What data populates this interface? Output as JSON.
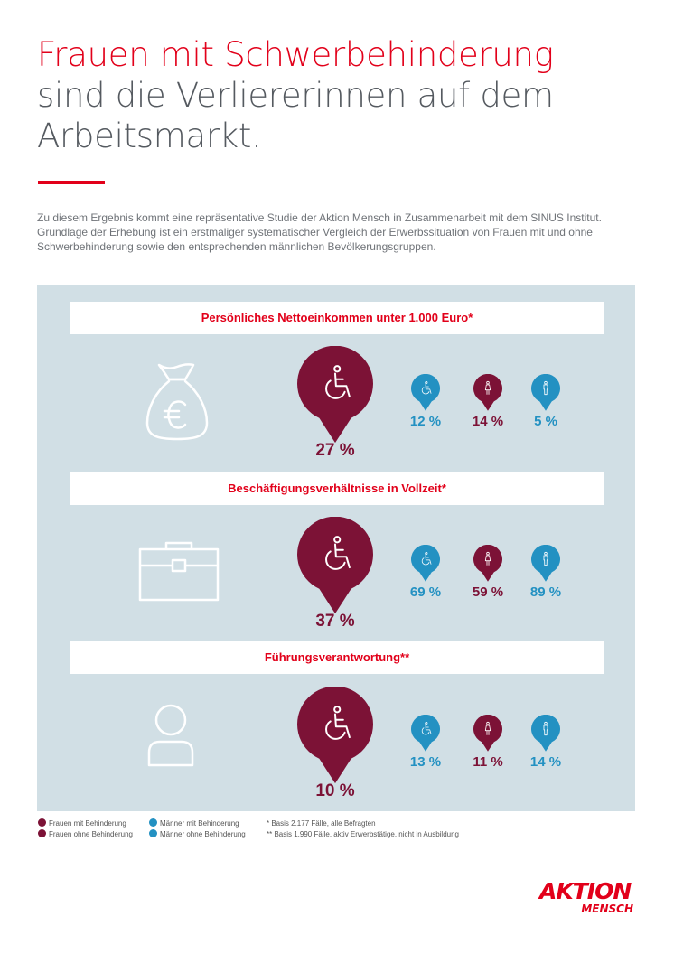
{
  "title": {
    "line1": "Frauen mit Schwerbehinderung",
    "line2": "sind die Verliererinnen auf dem",
    "line3": "Arbeitsmarkt."
  },
  "intro": "Zu diesem Ergebnis kommt eine repräsentative Studie der Aktion Mensch in Zusammenarbeit mit dem SINUS Institut. Grundlage der Erhebung ist ein erstmaliger systematischer Vergleich der Erwerbssituation von Frauen mit und ohne Schwerbehinderung sowie den entsprechenden männlichen Bevölkerungsgruppen.",
  "colors": {
    "accent_red": "#e2001a",
    "women": "#7c1236",
    "men": "#2391c2",
    "panel": "#d1dfe5"
  },
  "chart_data": [
    {
      "type": "bar",
      "title": "Persönliches Nettoeinkommen unter 1.000 Euro*",
      "icon": "money-bag-euro-icon",
      "categories": [
        "Frauen mit Behinderung",
        "Männer mit Behinderung",
        "Frauen ohne Behinderung",
        "Männer ohne Behinderung"
      ],
      "values": [
        27,
        12,
        14,
        5
      ],
      "labels": [
        "27 %",
        "12 %",
        "14 %",
        "5 %"
      ],
      "unit": "%"
    },
    {
      "type": "bar",
      "title": "Beschäftigungsverhältnisse in Vollzeit*",
      "icon": "briefcase-icon",
      "categories": [
        "Frauen mit Behinderung",
        "Männer mit Behinderung",
        "Frauen ohne Behinderung",
        "Männer ohne Behinderung"
      ],
      "values": [
        37,
        69,
        59,
        89
      ],
      "labels": [
        "37 %",
        "69 %",
        "59 %",
        "89 %"
      ],
      "unit": "%"
    },
    {
      "type": "bar",
      "title": "Führungsverantwortung**",
      "icon": "person-icon",
      "categories": [
        "Frauen mit Behinderung",
        "Männer mit Behinderung",
        "Frauen ohne Behinderung",
        "Männer ohne Behinderung"
      ],
      "values": [
        10,
        13,
        11,
        14
      ],
      "labels": [
        "10 %",
        "13 %",
        "11 %",
        "14 %"
      ],
      "unit": "%"
    }
  ],
  "legend": {
    "items": [
      "Frauen mit Behinderung",
      "Männer mit Behinderung",
      "Frauen ohne Behinderung",
      "Männer ohne Behinderung"
    ],
    "notes": [
      "*  Basis 2.177 Fälle, alle Befragten",
      "**  Basis 1.990 Fälle, aktiv Erwerbstätige, nicht in Ausbildung"
    ]
  },
  "logo": {
    "line1": "AKTION",
    "line2": "MENSCH"
  }
}
